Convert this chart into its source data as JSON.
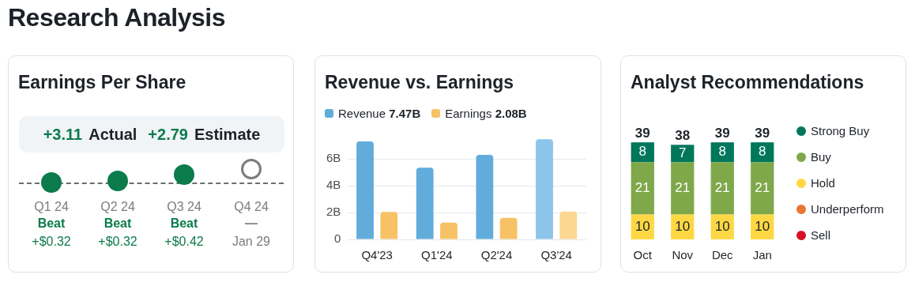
{
  "chart_data": [
    {
      "type": "other",
      "title": "Research Analysis"
    },
    {
      "type": "other",
      "title": "Earnings Per Share",
      "categories": [
        "Q1 24",
        "Q2 24",
        "Q3 24",
        "Q4 24"
      ],
      "colors": [
        "#0b7b4b",
        "#0b7b4b",
        "#0b7b4b",
        "#7a7d80"
      ],
      "annotations": [
        "+3.11",
        "Actual",
        "+2.79",
        "Estimate",
        "Beat",
        "+$0.32",
        "Beat",
        "+$0.32",
        "Beat",
        "+$0.42",
        "—",
        "Jan 29"
      ]
    },
    {
      "type": "bar",
      "title": "Revenue vs. Earnings",
      "categories": [
        "Q4'23",
        "Q1'24",
        "Q2'24",
        "Q3'24"
      ],
      "series": [
        {
          "name": "Revenue 7.47B",
          "color": "#62acdc",
          "colors": [
            "#62acdc",
            "#62acdc",
            "#62acdc",
            "#8dc4ea"
          ],
          "values": [
            7.3,
            5.35,
            6.3,
            7.47
          ]
        },
        {
          "name": "Earnings 2.08B",
          "color": "#f7c265",
          "colors": [
            "#f7c265",
            "#f7c265",
            "#f7c265",
            "#fdd692"
          ],
          "values": [
            2.05,
            1.25,
            1.6,
            2.08
          ]
        }
      ],
      "ylim": [
        0,
        7.6
      ],
      "yticks": [
        0,
        {
          "value": 2,
          "label": "2B"
        },
        {
          "value": 4,
          "label": "4B"
        },
        {
          "value": 6,
          "label": "6B"
        }
      ],
      "grid": "y",
      "legend": "top left"
    },
    {
      "type": "bar",
      "title": "Analyst Recommendations",
      "categories": [
        "Oct",
        "Nov",
        "Dec",
        "Jan"
      ],
      "stacked": true,
      "series": [
        {
          "name": "Sell",
          "color": "#d80f2b",
          "values": [
            0,
            0,
            0,
            0
          ],
          "value_labels": [
            null,
            null,
            null,
            null
          ]
        },
        {
          "name": "Underperform",
          "color": "#eb7534",
          "values": [
            0,
            0,
            0,
            0
          ],
          "value_labels": [
            null,
            null,
            null,
            null
          ]
        },
        {
          "name": "Hold",
          "color": "#fdd844",
          "values": [
            10,
            10,
            10,
            10
          ],
          "value_labels": [
            "10",
            "10",
            "10",
            "10"
          ]
        },
        {
          "name": "Buy",
          "color": "#7fa84a",
          "values": [
            21,
            21,
            21,
            21
          ],
          "value_labels": [
            "21",
            "21",
            "21",
            "21"
          ]
        },
        {
          "name": "Strong Buy",
          "color": "#00775b",
          "values": [
            8,
            7,
            8,
            8
          ],
          "value_labels": [
            "8",
            "7",
            "8",
            "8"
          ]
        }
      ],
      "totals": [
        "39",
        "38",
        "39",
        "39"
      ],
      "legend": "right"
    }
  ]
}
